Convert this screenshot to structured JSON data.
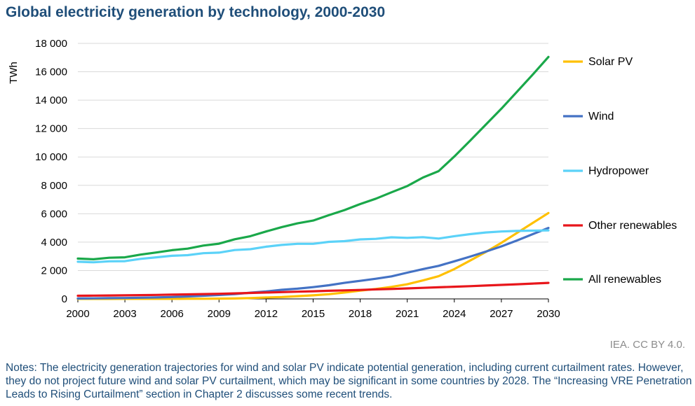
{
  "title": "Global electricity generation by technology, 2000-2030",
  "credit": "IEA. CC BY 4.0.",
  "notes": "Notes: The electricity generation trajectories for wind and solar PV indicate potential generation, including current curtailment rates. However, they do not project future wind and solar PV curtailment, which may be significant in some countries by 2028. The “Increasing VRE Penetration Leads to Rising Curtailment” section in Chapter 2 discusses some recent trends.",
  "chart_data": {
    "type": "line",
    "ylabel": "TWh",
    "xlabel": "",
    "xlim": [
      2000,
      2030
    ],
    "ylim": [
      0,
      18000
    ],
    "x_ticks": [
      2000,
      2003,
      2006,
      2009,
      2012,
      2015,
      2018,
      2021,
      2024,
      2027,
      2030
    ],
    "x_tick_labels": [
      "2000",
      "2003",
      "2006",
      "2009",
      "2012",
      "2015",
      "2018",
      "2021",
      "2024",
      "2027",
      "2030"
    ],
    "y_ticks": [
      0,
      2000,
      4000,
      6000,
      8000,
      10000,
      12000,
      14000,
      16000,
      18000
    ],
    "y_tick_labels": [
      "0",
      "2 000",
      "4 000",
      "6 000",
      "8 000",
      "10 000",
      "12 000",
      "14 000",
      "16 000",
      "18 000"
    ],
    "grid": "horizontal",
    "legend_position": "right",
    "x": [
      2000,
      2001,
      2002,
      2003,
      2004,
      2005,
      2006,
      2007,
      2008,
      2009,
      2010,
      2011,
      2012,
      2013,
      2014,
      2015,
      2016,
      2017,
      2018,
      2019,
      2020,
      2021,
      2022,
      2023,
      2024,
      2025,
      2026,
      2027,
      2028,
      2029,
      2030
    ],
    "series": [
      {
        "name": "Solar PV",
        "color": "#ffc000",
        "values": [
          1,
          2,
          2,
          3,
          4,
          5,
          6,
          8,
          12,
          20,
          32,
          60,
          100,
          135,
          190,
          250,
          330,
          450,
          580,
          700,
          850,
          1030,
          1300,
          1600,
          2100,
          2700,
          3300,
          3950,
          4650,
          5350,
          6050
        ]
      },
      {
        "name": "Wind",
        "color": "#4472c4",
        "values": [
          31,
          38,
          52,
          63,
          85,
          104,
          133,
          171,
          220,
          277,
          342,
          437,
          524,
          640,
          720,
          830,
          960,
          1130,
          1270,
          1420,
          1590,
          1850,
          2100,
          2330,
          2650,
          2980,
          3330,
          3700,
          4120,
          4560,
          5000
        ]
      },
      {
        "name": "Hydropower",
        "color": "#5bd2f8",
        "values": [
          2620,
          2580,
          2650,
          2660,
          2820,
          2930,
          3040,
          3080,
          3220,
          3260,
          3440,
          3500,
          3680,
          3800,
          3880,
          3880,
          4020,
          4070,
          4190,
          4230,
          4340,
          4300,
          4350,
          4250,
          4420,
          4560,
          4680,
          4750,
          4790,
          4810,
          4830
        ]
      },
      {
        "name": "Other renewables",
        "color": "#e8161b",
        "values": [
          220,
          230,
          240,
          250,
          265,
          280,
          300,
          320,
          340,
          360,
          390,
          420,
          450,
          480,
          510,
          540,
          570,
          600,
          630,
          670,
          700,
          740,
          780,
          820,
          860,
          900,
          940,
          985,
          1030,
          1080,
          1130
        ]
      },
      {
        "name": "All renewables",
        "color": "#1aa84a",
        "values": [
          2840,
          2790,
          2900,
          2930,
          3120,
          3270,
          3430,
          3540,
          3760,
          3890,
          4200,
          4420,
          4750,
          5060,
          5320,
          5520,
          5900,
          6260,
          6680,
          7060,
          7510,
          7950,
          8550,
          9000,
          10030,
          11140,
          12270,
          13400,
          14600,
          15800,
          17050
        ]
      }
    ]
  }
}
